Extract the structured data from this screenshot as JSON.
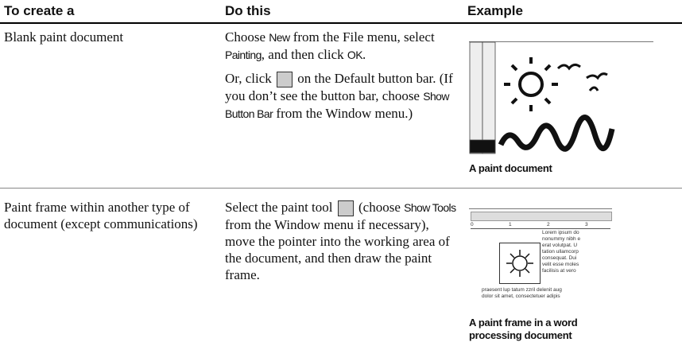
{
  "header": {
    "columns": [
      "To create a",
      "Do this",
      "Example"
    ]
  },
  "rows": [
    {
      "task": "Blank paint document",
      "steps": [
        [
          "Choose ",
          "New",
          " from the File menu, select ",
          "Painting",
          ", and then click ",
          "OK",
          "."
        ],
        [
          "Or, click ",
          " on the Default button bar. (If you don’t see the button bar, choose ",
          "Show Button Bar",
          " from the Window menu.)"
        ]
      ],
      "caption": "A paint document"
    },
    {
      "task": "Paint frame within another type of document (except communications)",
      "steps": [
        [
          "Select the paint tool ",
          " (choose ",
          "Show Tools",
          " from the Window menu if necessary), move the pointer into the working area of the document, and then draw the paint frame."
        ]
      ],
      "caption": "A paint frame in a word processing document",
      "ruler": [
        "0",
        "1",
        "2",
        "3"
      ],
      "sample_text": [
        "Lorem ipsum do",
        "nonummy nibh e",
        "erat volutpat. U",
        "tation ullamcorp",
        "consequat. Dui",
        "velit esse moles",
        "facilisis at vero",
        "praesent lup tatum zzril delenit aug",
        "dolor sit amet, consectetuer adipis"
      ]
    }
  ]
}
